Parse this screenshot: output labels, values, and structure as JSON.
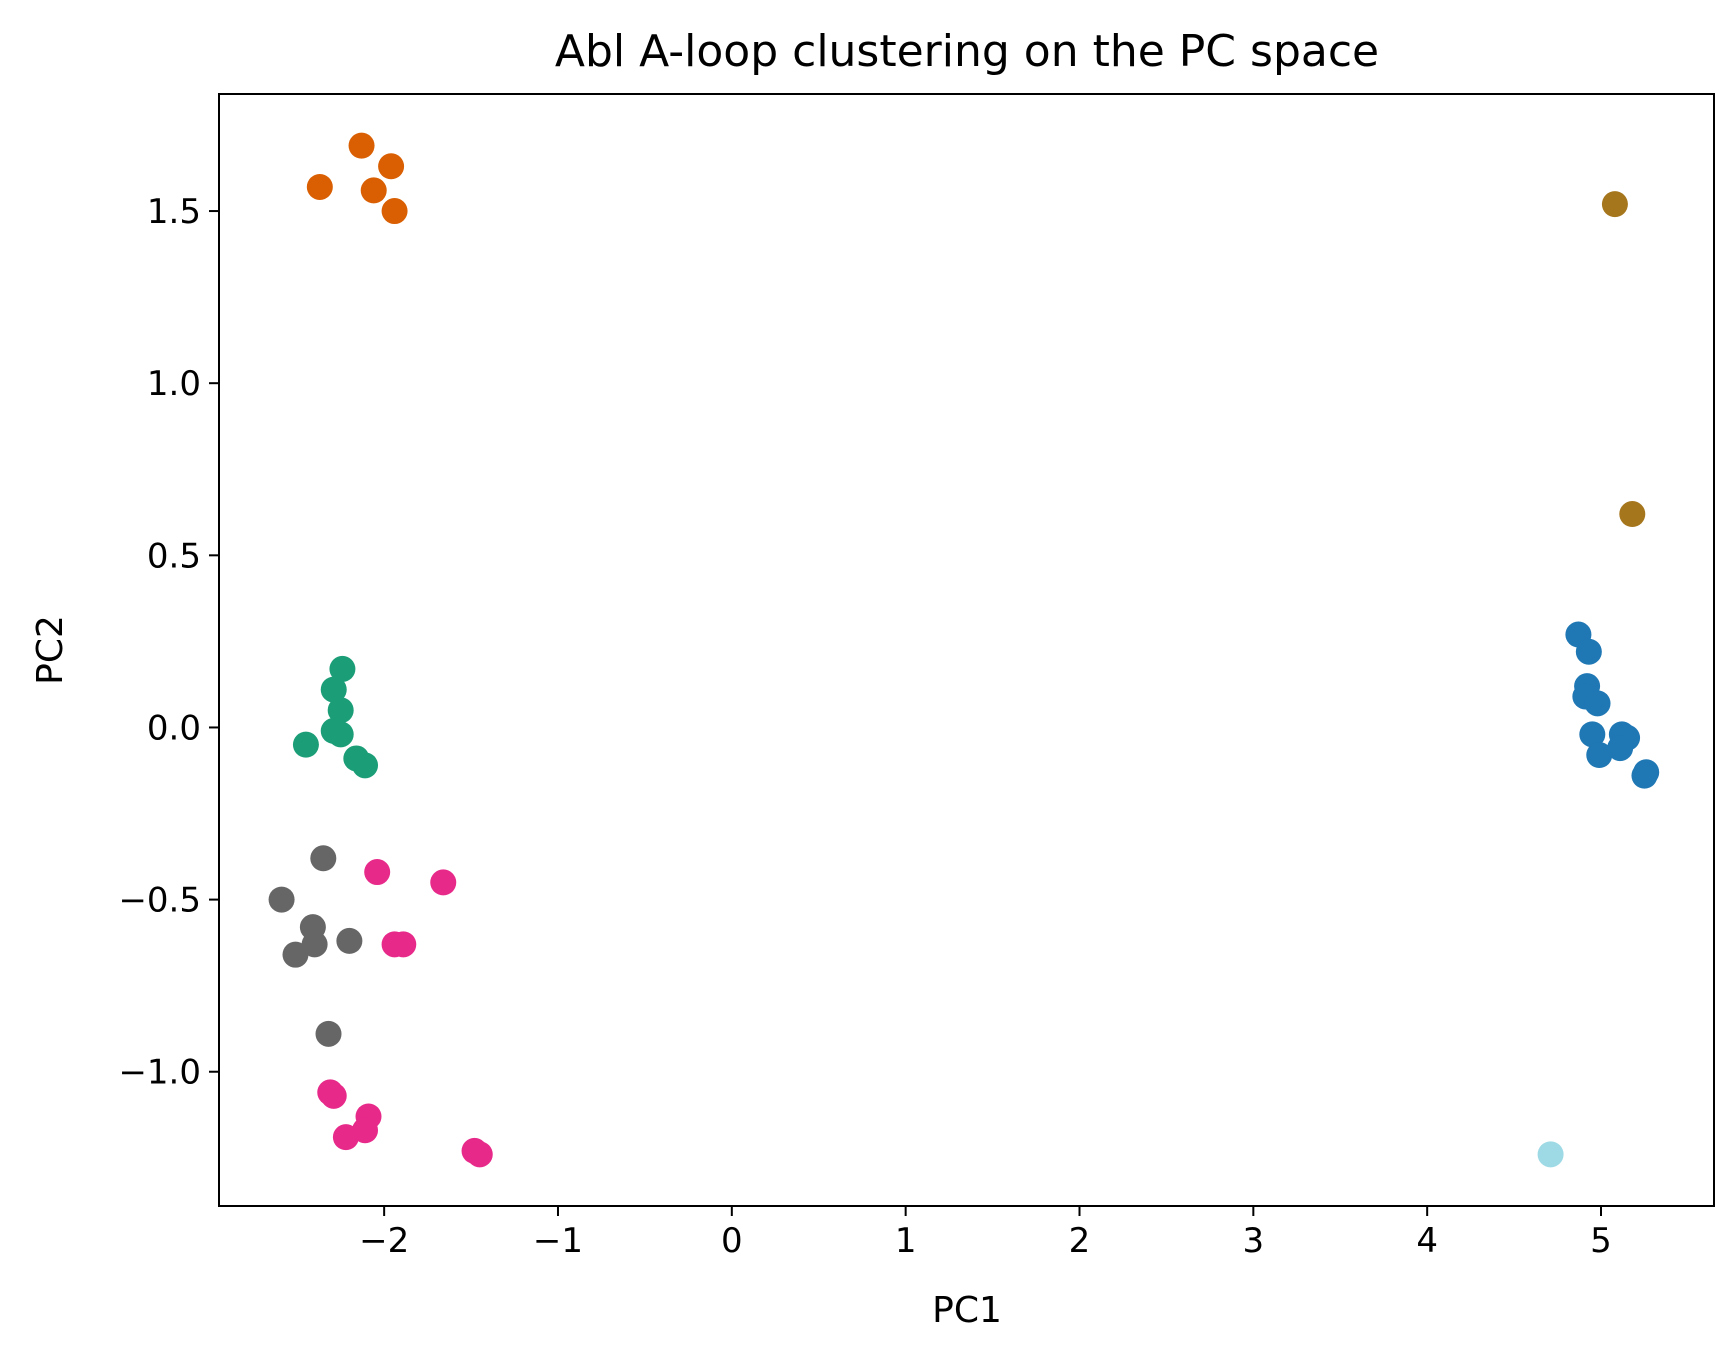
{
  "chart_data": {
    "type": "scatter",
    "title": "Abl A-loop clustering on the PC space",
    "xlabel": "PC1",
    "ylabel": "PC2",
    "xlim": [
      -2.95,
      5.65
    ],
    "ylim": [
      -1.39,
      1.84
    ],
    "xticks": [
      -2,
      -1,
      0,
      1,
      2,
      3,
      4,
      5
    ],
    "xtick_labels": [
      "−2",
      "−1",
      "0",
      "1",
      "2",
      "3",
      "4",
      "5"
    ],
    "yticks": [
      -1.0,
      -0.5,
      0.0,
      0.5,
      1.0,
      1.5
    ],
    "ytick_labels": [
      "−1.0",
      "−0.5",
      "0.0",
      "0.5",
      "1.0",
      "1.5"
    ],
    "grid": false,
    "legend": "none",
    "series": [
      {
        "color": "#d95f02",
        "points": [
          [
            -2.13,
            1.69
          ],
          [
            -1.96,
            1.63
          ],
          [
            -2.37,
            1.57
          ],
          [
            -2.06,
            1.56
          ],
          [
            -1.94,
            1.5
          ]
        ]
      },
      {
        "color": "#a6761d",
        "points": [
          [
            5.08,
            1.52
          ],
          [
            5.18,
            0.62
          ]
        ]
      },
      {
        "color": "#1b9e77",
        "points": [
          [
            -2.24,
            0.17
          ],
          [
            -2.29,
            0.11
          ],
          [
            -2.25,
            0.05
          ],
          [
            -2.29,
            -0.01
          ],
          [
            -2.25,
            -0.02
          ],
          [
            -2.45,
            -0.05
          ],
          [
            -2.16,
            -0.09
          ],
          [
            -2.11,
            -0.11
          ]
        ]
      },
      {
        "color": "#1f77b4",
        "points": [
          [
            4.87,
            0.27
          ],
          [
            4.93,
            0.22
          ],
          [
            4.92,
            0.12
          ],
          [
            4.91,
            0.09
          ],
          [
            4.98,
            0.07
          ],
          [
            4.95,
            -0.02
          ],
          [
            5.12,
            -0.02
          ],
          [
            5.15,
            -0.03
          ],
          [
            5.11,
            -0.06
          ],
          [
            4.99,
            -0.08
          ],
          [
            5.26,
            -0.13
          ],
          [
            5.25,
            -0.14
          ]
        ]
      },
      {
        "color": "#666666",
        "points": [
          [
            -2.35,
            -0.38
          ],
          [
            -2.59,
            -0.5
          ],
          [
            -2.41,
            -0.58
          ],
          [
            -2.2,
            -0.62
          ],
          [
            -2.4,
            -0.63
          ],
          [
            -2.51,
            -0.66
          ],
          [
            -2.32,
            -0.89
          ]
        ]
      },
      {
        "color": "#e7298a",
        "points": [
          [
            -2.04,
            -0.42
          ],
          [
            -1.66,
            -0.45
          ],
          [
            -1.94,
            -0.63
          ],
          [
            -1.89,
            -0.63
          ],
          [
            -2.31,
            -1.06
          ],
          [
            -2.29,
            -1.07
          ],
          [
            -2.09,
            -1.13
          ],
          [
            -2.11,
            -1.17
          ],
          [
            -2.22,
            -1.19
          ],
          [
            -1.48,
            -1.23
          ],
          [
            -1.45,
            -1.24
          ]
        ]
      },
      {
        "color": "#9edae5",
        "points": [
          [
            4.71,
            -1.24
          ]
        ]
      }
    ]
  }
}
